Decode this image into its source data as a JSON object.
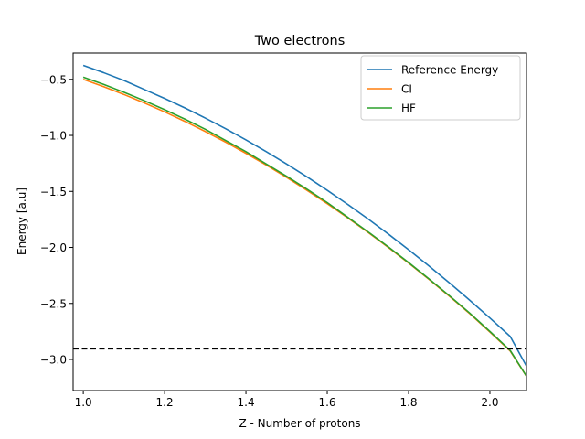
{
  "chart_data": {
    "type": "line",
    "title": "Two electrons",
    "xlabel": "Z - Number of protons",
    "ylabel": "Energy [a.u]",
    "xlim": [
      0.975,
      2.09
    ],
    "ylim": [
      -3.2775,
      -0.265
    ],
    "xticks": [
      1.0,
      1.2,
      1.4,
      1.6,
      1.8,
      2.0
    ],
    "xtick_labels": [
      "1.0",
      "1.2",
      "1.4",
      "1.6",
      "1.8",
      "2.0"
    ],
    "yticks": [
      -0.5,
      -1.0,
      -1.5,
      -2.0,
      -2.5,
      -3.0
    ],
    "ytick_labels": [
      "−0.5",
      "−1.0",
      "−1.5",
      "−2.0",
      "−2.5",
      "−3.0"
    ],
    "grid": false,
    "legend_position": "top-right",
    "x": [
      1.0,
      1.05,
      1.1,
      1.15,
      1.2,
      1.25,
      1.3,
      1.35,
      1.4,
      1.45,
      1.5,
      1.55,
      1.6,
      1.65,
      1.7,
      1.75,
      1.8,
      1.85,
      1.9,
      1.95,
      2.0,
      2.05,
      2.09
    ],
    "series": [
      {
        "name": "Reference Energy",
        "color": "#1f77b4",
        "values": [
          -0.375,
          -0.44,
          -0.51,
          -0.59,
          -0.67,
          -0.755,
          -0.845,
          -0.94,
          -1.04,
          -1.145,
          -1.255,
          -1.37,
          -1.49,
          -1.615,
          -1.745,
          -1.88,
          -2.02,
          -2.165,
          -2.315,
          -2.47,
          -2.63,
          -2.795,
          -3.06
        ]
      },
      {
        "name": "CI",
        "color": "#ff7f0e",
        "values": [
          -0.5,
          -0.565,
          -0.635,
          -0.71,
          -0.79,
          -0.875,
          -0.965,
          -1.06,
          -1.16,
          -1.265,
          -1.375,
          -1.49,
          -1.61,
          -1.735,
          -1.865,
          -2.0,
          -2.14,
          -2.285,
          -2.435,
          -2.59,
          -2.755,
          -2.925,
          -3.15
        ]
      },
      {
        "name": "HF",
        "color": "#2ca02c",
        "values": [
          -0.48,
          -0.545,
          -0.615,
          -0.69,
          -0.77,
          -0.855,
          -0.945,
          -1.045,
          -1.145,
          -1.255,
          -1.365,
          -1.48,
          -1.6,
          -1.73,
          -1.86,
          -1.995,
          -2.135,
          -2.28,
          -2.43,
          -2.585,
          -2.75,
          -2.92,
          -3.15
        ]
      }
    ],
    "reference_line": {
      "y": -2.9037,
      "color": "#000000",
      "style": "dashed"
    }
  }
}
